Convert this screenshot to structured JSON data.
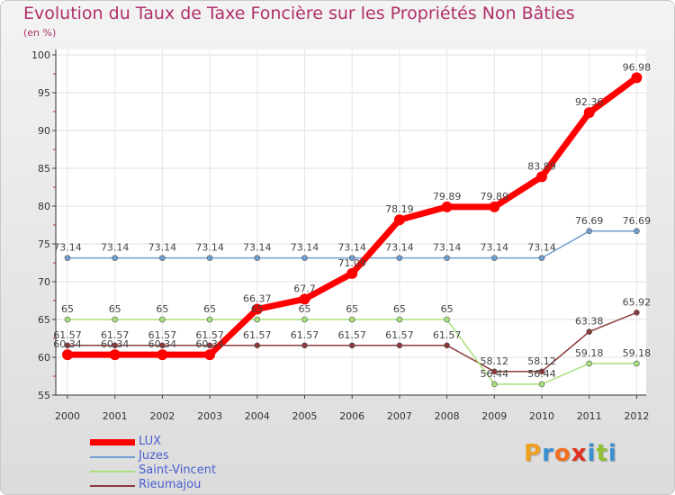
{
  "chart_data": {
    "type": "line",
    "title": "Evolution du Taux de Taxe Foncière sur les Propriétés Non Bâties",
    "ylabel": "(en %)",
    "xlabel": "",
    "categories": [
      "2000",
      "2001",
      "2002",
      "2003",
      "2004",
      "2005",
      "2006",
      "2007",
      "2008",
      "2009",
      "2010",
      "2011",
      "2012"
    ],
    "ylim": [
      55,
      100
    ],
    "yticks": [
      55,
      60,
      65,
      70,
      75,
      80,
      85,
      90,
      95,
      100
    ],
    "series": [
      {
        "name": "LUX",
        "color": "#ff0000",
        "values": [
          60.34,
          60.34,
          60.34,
          60.34,
          66.37,
          67.7,
          71.09,
          78.19,
          79.89,
          79.89,
          83.89,
          92.36,
          96.98
        ],
        "labels": [
          "60.34",
          "60.34",
          "60.34",
          "60.34",
          "66.37",
          "67.7",
          "71.09",
          "78.19",
          "79.89",
          "79.89",
          "83.89",
          "92.36",
          "96.98"
        ]
      },
      {
        "name": "Juzes",
        "color": "#6f9fd0",
        "values": [
          73.14,
          73.14,
          73.14,
          73.14,
          73.14,
          73.14,
          73.14,
          73.14,
          73.14,
          73.14,
          73.14,
          76.69,
          76.69
        ],
        "labels": [
          "73.14",
          "73.14",
          "73.14",
          "73.14",
          "73.14",
          "73.14",
          "73.14",
          "73.14",
          "73.14",
          "73.14",
          "73.14",
          "76.69",
          "76.69"
        ]
      },
      {
        "name": "Saint-Vincent",
        "color": "#a8e07a",
        "values": [
          65,
          65,
          65,
          65,
          65,
          65,
          65,
          65,
          65,
          56.44,
          56.44,
          59.18,
          59.18
        ],
        "labels": [
          "65",
          "65",
          "65",
          "65",
          "65",
          "65",
          "65",
          "65",
          "65",
          "56.44",
          "56.44",
          "59.18",
          "59.18"
        ]
      },
      {
        "name": "Rieumajou",
        "color": "#8b3a3a",
        "values": [
          61.57,
          61.57,
          61.57,
          61.57,
          61.57,
          61.57,
          61.57,
          61.57,
          61.57,
          58.12,
          58.12,
          63.38,
          65.92
        ],
        "labels": [
          "61.57",
          "61.57",
          "61.57",
          "61.57",
          "61.57",
          "61.57",
          "61.57",
          "61.57",
          "61.57",
          "58.12",
          "58.12",
          "63.38",
          "65.92"
        ]
      }
    ],
    "legend": [
      "LUX",
      "Juzes",
      "Saint-Vincent",
      "Rieumajou"
    ],
    "legend_position": "bottom-left"
  },
  "header": {
    "title": "Evolution du Taux de Taxe Foncière sur les Propriétés Non Bâties",
    "unit": "(en %)"
  },
  "brand": {
    "name": "Proxiti",
    "letters": [
      "P",
      "r",
      "o",
      "x",
      "i",
      "t",
      "i"
    ]
  }
}
